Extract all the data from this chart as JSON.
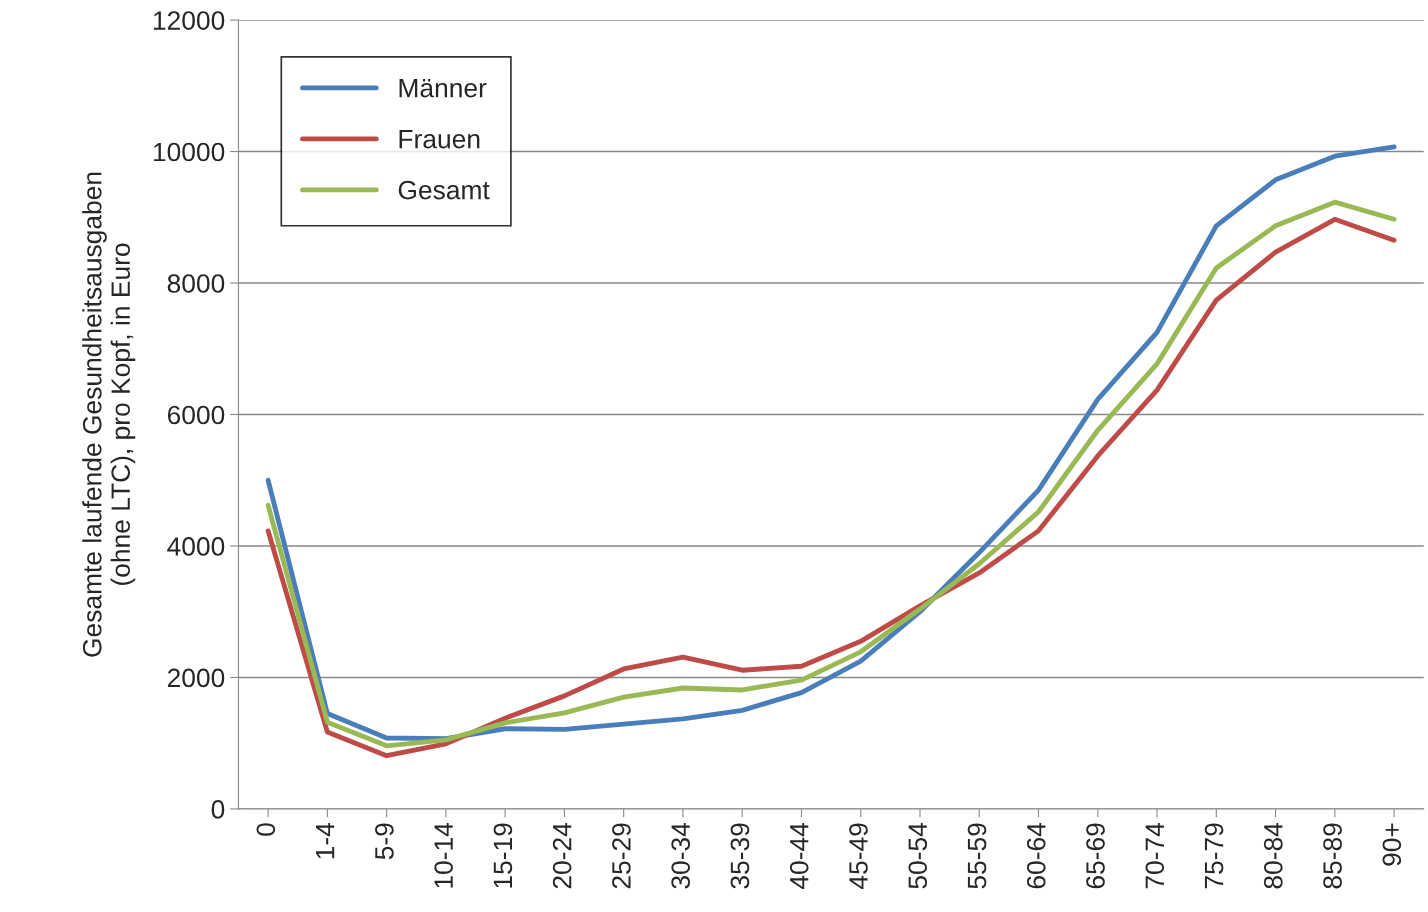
{
  "chart_data": {
    "type": "line",
    "ylabel": "Gesamte laufende Gesundheitsausgaben\n(ohne LTC), pro Kopf, in Euro",
    "categories": [
      "0",
      "1-4",
      "5-9",
      "10-14",
      "15-19",
      "20-24",
      "25-29",
      "30-34",
      "35-39",
      "40-44",
      "45-49",
      "50-54",
      "55-59",
      "60-64",
      "65-69",
      "70-74",
      "75-79",
      "80-84",
      "85-89",
      "90+"
    ],
    "series": [
      {
        "name": "Männer",
        "color": "#4a7ebb",
        "values": [
          5000,
          1450,
          1080,
          1070,
          1220,
          1210,
          1290,
          1370,
          1500,
          1770,
          2250,
          3000,
          3900,
          4850,
          6230,
          7250,
          8870,
          9570,
          9930,
          10070
        ]
      },
      {
        "name": "Frauen",
        "color": "#be4b48",
        "values": [
          4230,
          1170,
          810,
          990,
          1380,
          1720,
          2130,
          2310,
          2110,
          2170,
          2550,
          3090,
          3590,
          4230,
          5370,
          6370,
          7740,
          8470,
          8970,
          8650
        ]
      },
      {
        "name": "Gesamt",
        "color": "#98b954",
        "values": [
          4620,
          1320,
          960,
          1050,
          1310,
          1460,
          1700,
          1840,
          1810,
          1960,
          2390,
          3040,
          3730,
          4520,
          5760,
          6770,
          8230,
          8870,
          9230,
          8970
        ]
      }
    ],
    "ylim": [
      0,
      12000
    ],
    "yticks": [
      0,
      2000,
      4000,
      6000,
      8000,
      10000,
      12000
    ],
    "grid": "y",
    "legend": "top left",
    "marker": "none",
    "line_style": "solid"
  }
}
